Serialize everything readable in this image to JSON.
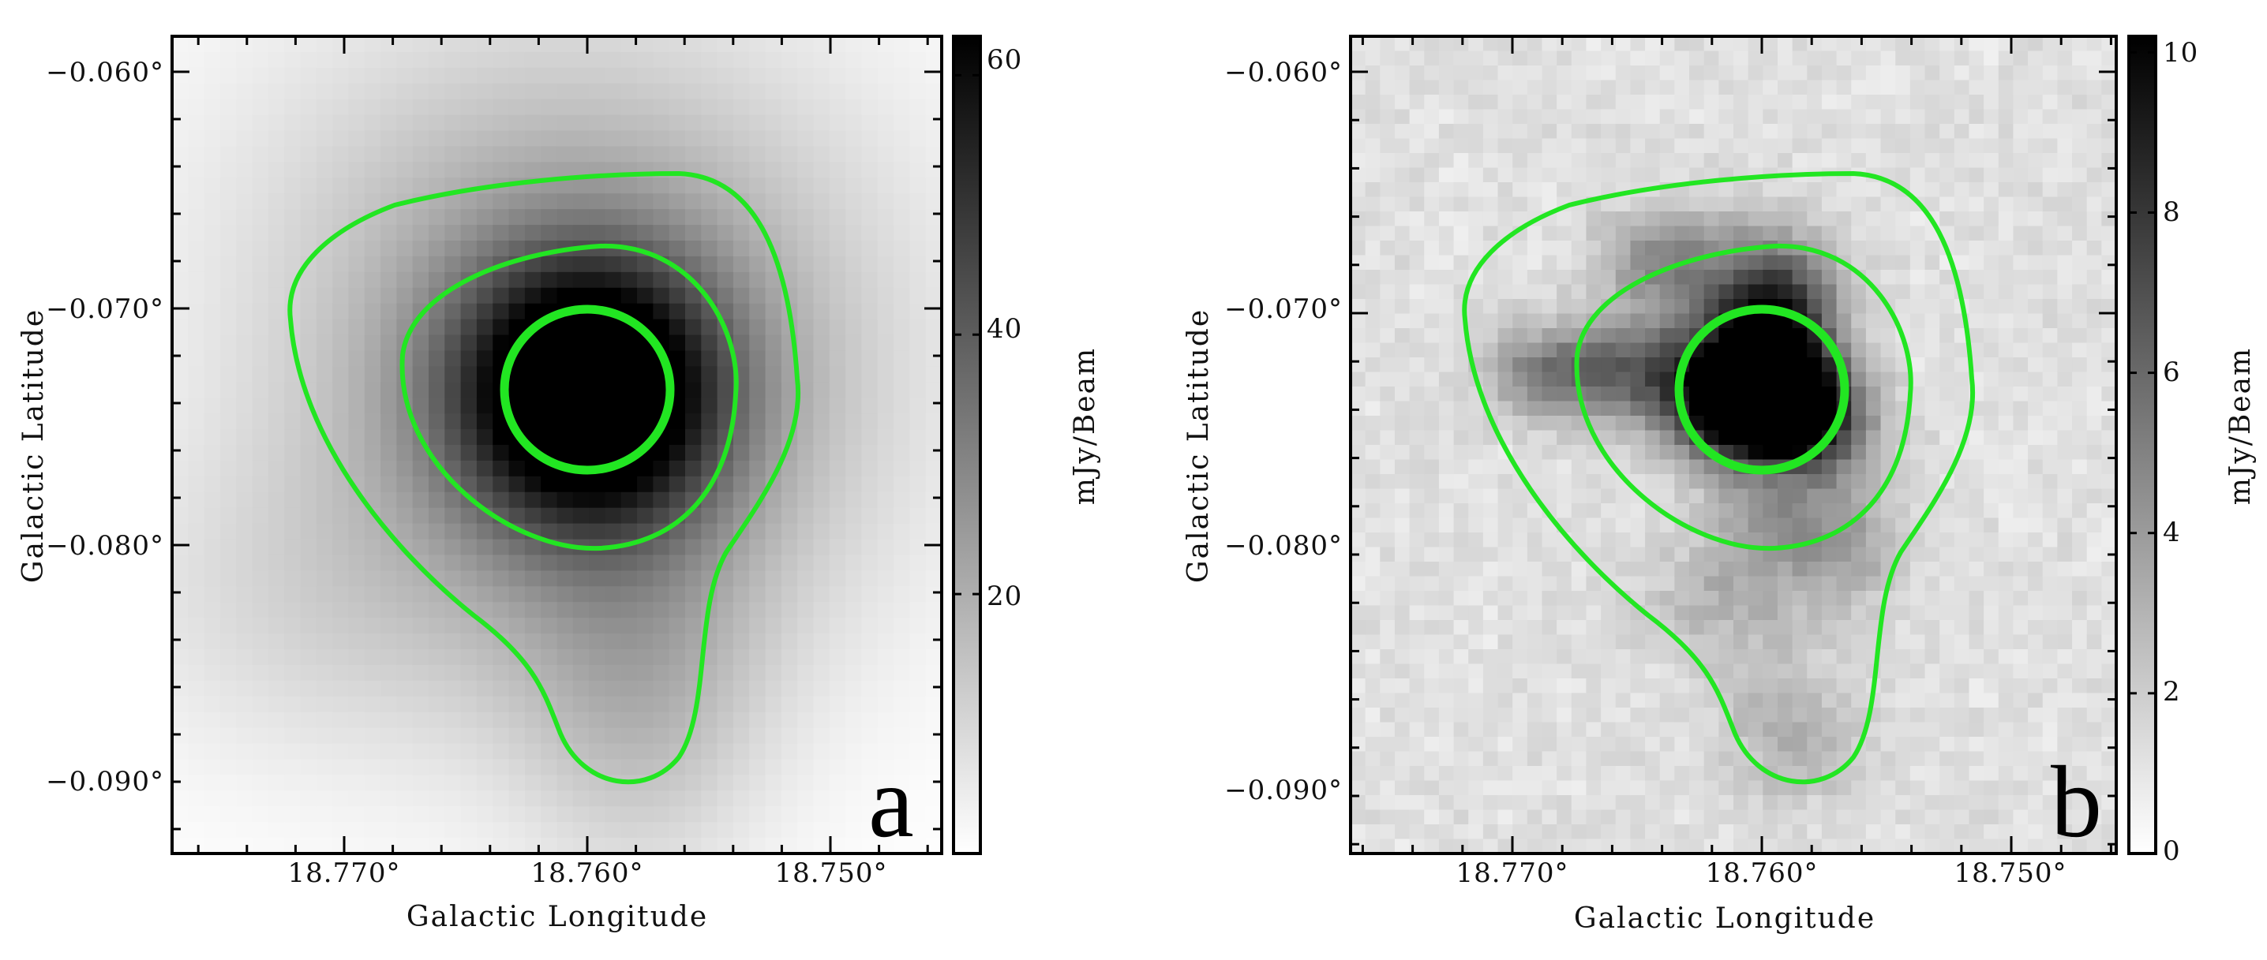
{
  "chart_data": [
    {
      "type": "heatmap",
      "panel_label": "a",
      "xlabel": "Galactic Longitude",
      "ylabel": "Galactic Latitude",
      "x_ticks": [
        "18.770°",
        "18.760°",
        "18.750°"
      ],
      "y_ticks": [
        "−0.060°",
        "−0.070°",
        "−0.080°",
        "−0.090°"
      ],
      "x_range_deg": [
        18.7728,
        18.7475
      ],
      "y_range_deg": [
        -0.0932,
        -0.0585
      ],
      "colorbar": {
        "label": "mJy/Beam",
        "ticks": [
          "20",
          "40",
          "60"
        ],
        "range": [
          0,
          63
        ],
        "colormap": "white-to-black"
      },
      "peak": {
        "l": 18.76,
        "b": -0.0735,
        "value": 63
      },
      "contour_color": "#22e622",
      "contours": [
        "outer",
        "middle",
        "inner"
      ]
    },
    {
      "type": "heatmap",
      "panel_label": "b",
      "xlabel": "Galactic Longitude",
      "ylabel": "Galactic Latitude",
      "x_ticks": [
        "18.770°",
        "18.760°",
        "18.750°"
      ],
      "y_ticks": [
        "−0.060°",
        "−0.070°",
        "−0.080°",
        "−0.090°"
      ],
      "x_range_deg": [
        18.7728,
        18.7475
      ],
      "y_range_deg": [
        -0.0932,
        -0.0585
      ],
      "colorbar": {
        "label": "mJy/Beam",
        "ticks": [
          "0",
          "2",
          "4",
          "6",
          "8",
          "10"
        ],
        "range": [
          0,
          10.2
        ],
        "colormap": "white-to-black"
      },
      "peak": {
        "l": 18.76,
        "b": -0.0728,
        "value": 10
      },
      "contour_color": "#22e622",
      "contours": [
        "outer",
        "middle",
        "inner"
      ]
    }
  ]
}
